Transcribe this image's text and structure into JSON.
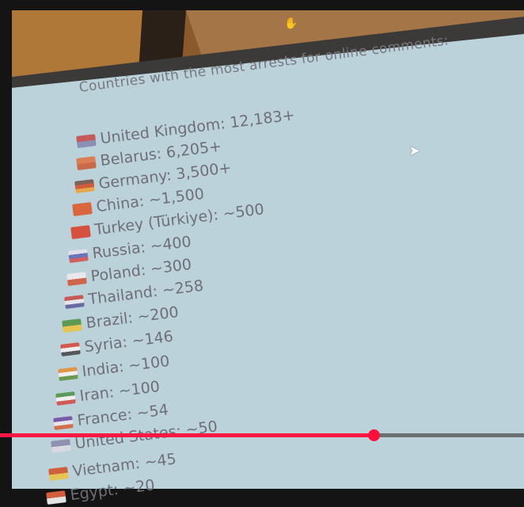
{
  "video": {
    "title": "Countries with the most arrests for online comments:",
    "list": [
      {
        "label": "United Kingdom: 12,183+",
        "flag": "uk",
        "colors": [
          "#c45a5a",
          "#8a8fb8"
        ]
      },
      {
        "label": "Belarus: 6,205+",
        "flag": "belarus",
        "colors": [
          "#d97e55",
          "#c96b4a"
        ]
      },
      {
        "label": "Germany: 3,500+",
        "flag": "germany",
        "colors": [
          "#7a6258",
          "#d35b3d",
          "#e4a84a"
        ]
      },
      {
        "label": "China: ~1,500",
        "flag": "china",
        "colors": [
          "#d9663d",
          "#d9663d"
        ]
      },
      {
        "label": "Turkey (Türkiye): ~500",
        "flag": "turkey",
        "colors": [
          "#d6503f",
          "#d6503f"
        ]
      },
      {
        "label": "Russia: ~400",
        "flag": "russia",
        "colors": [
          "#e0e0e8",
          "#6a74b8",
          "#d06060"
        ]
      },
      {
        "label": "Poland: ~300",
        "flag": "poland",
        "colors": [
          "#e8e8ea",
          "#d0654d"
        ]
      },
      {
        "label": "Thailand: ~258",
        "flag": "thailand",
        "colors": [
          "#c85a55",
          "#e6e6ea",
          "#6a6aa0"
        ]
      },
      {
        "label": "Brazil: ~200",
        "flag": "brazil",
        "colors": [
          "#5c9a52",
          "#e4c452"
        ]
      },
      {
        "label": "Syria: ~146",
        "flag": "syria",
        "colors": [
          "#d05a4d",
          "#eeeeee",
          "#55575c"
        ]
      },
      {
        "label": "India: ~100",
        "flag": "india",
        "colors": [
          "#e0954d",
          "#eeeeee",
          "#6a9a52"
        ]
      },
      {
        "label": "Iran: ~100",
        "flag": "iran",
        "colors": [
          "#5a9a5a",
          "#eeeeee",
          "#d05a55"
        ]
      },
      {
        "label": "France: ~54",
        "flag": "france",
        "colors": [
          "#7a5aa8",
          "#e4e4ea",
          "#d0704d"
        ]
      },
      {
        "label": "United States: ~50",
        "flag": "usa",
        "colors": [
          "#9090b0",
          "#d8d8e0"
        ]
      },
      {
        "label": "Vietnam: ~45",
        "flag": "vietnam",
        "colors": [
          "#d0603d",
          "#e4c452"
        ]
      },
      {
        "label": "Egypt: ~20",
        "flag": "egypt",
        "colors": [
          "#d0603d",
          "#e4e4e4"
        ]
      }
    ]
  },
  "player": {
    "progress_percent": 71.3,
    "played_color": "#ff1744",
    "unplayed_color": "#6b6f70",
    "cursor_icon": "arrow-pointer-icon",
    "hand_icon": "grab-hand-icon"
  }
}
